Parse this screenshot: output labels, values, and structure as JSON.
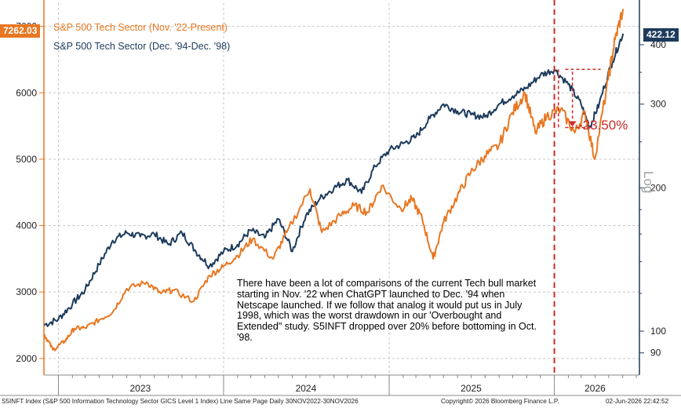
{
  "colors": {
    "orange": "#e87722",
    "navy": "#1d3b5c",
    "red": "#cc2b2b",
    "grid": "#c8c8c8"
  },
  "legend": {
    "series_1": "S&P 500 Tech Sector (Nov. '22-Present)",
    "series_2": "S&P 500 Tech Sector (Dec. '94-Dec. '98)"
  },
  "badges": {
    "left_last_value": "7262.03",
    "right_last_value": "422.12"
  },
  "annotation_text": "There have been a lot of comparisons of the current Tech bull market starting in Nov. '22 when ChatGPT launched to Dec. '94 when Netscape launched. If we follow that analog it would put us in July 1998, which was the worst drawdown in our 'Overbought and Extended\" study. S5INFT dropped over 20% before bottoming in Oct. '98.",
  "drawdown_label": "-23.50%",
  "right_axis_title": "Log",
  "footer": {
    "left": "S5INFT Index (S&P 500 Information Technology Sector GICS Level 1 Index) Line Same Page Daily 30NOV2022-30NOV2026",
    "middle": "Copyright© 2026 Bloomberg Finance L.P.",
    "right": "02-Jun-2026 22:42:52"
  },
  "chart_data": {
    "type": "line",
    "x_tick_labels": [
      "2023",
      "2024",
      "2025",
      "2026"
    ],
    "y_left": {
      "ticks": [
        2000,
        3000,
        4000,
        5000,
        6000,
        7000
      ],
      "ylim": [
        1750,
        7350
      ]
    },
    "y_right": {
      "scale": "log",
      "ticks": [
        90,
        100,
        200,
        300,
        400
      ],
      "title": "Log"
    },
    "vertical_marker_date": "2026-01",
    "drawdown": {
      "percent": -23.5,
      "label": "-23.50%"
    },
    "series": [
      {
        "name": "S&P 500 Tech Sector (Nov. '22-Present)",
        "axis": "left",
        "last_value": 7262.03,
        "points": [
          [
            "2022-11-30",
            2370
          ],
          [
            "2022-12-20",
            2130
          ],
          [
            "2023-01-15",
            2260
          ],
          [
            "2023-02-05",
            2450
          ],
          [
            "2023-03-01",
            2460
          ],
          [
            "2023-04-01",
            2580
          ],
          [
            "2023-05-01",
            2700
          ],
          [
            "2023-06-01",
            3050
          ],
          [
            "2023-07-15",
            3150
          ],
          [
            "2023-08-15",
            2980
          ],
          [
            "2023-09-10",
            3030
          ],
          [
            "2023-10-27",
            2860
          ],
          [
            "2023-12-01",
            3250
          ],
          [
            "2023-12-31",
            3380
          ],
          [
            "2024-02-01",
            3550
          ],
          [
            "2024-03-05",
            3800
          ],
          [
            "2024-04-19",
            3500
          ],
          [
            "2024-05-20",
            3900
          ],
          [
            "2024-07-10",
            4550
          ],
          [
            "2024-08-05",
            3900
          ],
          [
            "2024-09-15",
            4150
          ],
          [
            "2024-10-15",
            4300
          ],
          [
            "2024-11-15",
            4200
          ],
          [
            "2024-12-15",
            4600
          ],
          [
            "2025-01-27",
            4250
          ],
          [
            "2025-02-20",
            4400
          ],
          [
            "2025-03-15",
            4100
          ],
          [
            "2025-04-08",
            3500
          ],
          [
            "2025-05-01",
            4050
          ],
          [
            "2025-06-01",
            4450
          ],
          [
            "2025-06-30",
            4800
          ],
          [
            "2025-07-31",
            5050
          ],
          [
            "2025-08-31",
            5200
          ],
          [
            "2025-09-30",
            5700
          ],
          [
            "2025-10-28",
            6000
          ],
          [
            "2025-11-20",
            5400
          ],
          [
            "2025-12-15",
            5650
          ],
          [
            "2026-01-15",
            5750
          ],
          [
            "2026-02-15",
            5400
          ],
          [
            "2026-03-10",
            5700
          ],
          [
            "2026-03-31",
            5000
          ],
          [
            "2026-04-30",
            6200
          ],
          [
            "2026-05-15",
            6800
          ],
          [
            "2026-06-02",
            7262
          ]
        ]
      },
      {
        "name": "S&P 500 Tech Sector (Dec. '94-Dec. '98)",
        "axis": "right",
        "last_value": 422.12,
        "points": [
          [
            "2022-11-30",
            103
          ],
          [
            "2023-01-01",
            106
          ],
          [
            "2023-02-01",
            114
          ],
          [
            "2023-03-01",
            122
          ],
          [
            "2023-04-01",
            138
          ],
          [
            "2023-05-01",
            155
          ],
          [
            "2023-06-01",
            161
          ],
          [
            "2023-07-01",
            158
          ],
          [
            "2023-08-01",
            160
          ],
          [
            "2023-09-01",
            152
          ],
          [
            "2023-10-01",
            161
          ],
          [
            "2023-11-01",
            147
          ],
          [
            "2023-12-01",
            137
          ],
          [
            "2024-01-01",
            147
          ],
          [
            "2024-02-01",
            152
          ],
          [
            "2024-03-01",
            163
          ],
          [
            "2024-04-01",
            157
          ],
          [
            "2024-05-01",
            172
          ],
          [
            "2024-06-01",
            147
          ],
          [
            "2024-07-01",
            175
          ],
          [
            "2024-08-01",
            190
          ],
          [
            "2024-09-01",
            200
          ],
          [
            "2024-10-01",
            208
          ],
          [
            "2024-11-01",
            195
          ],
          [
            "2024-12-01",
            222
          ],
          [
            "2025-01-01",
            240
          ],
          [
            "2025-02-01",
            248
          ],
          [
            "2025-03-01",
            256
          ],
          [
            "2025-04-01",
            280
          ],
          [
            "2025-05-01",
            300
          ],
          [
            "2025-06-01",
            290
          ],
          [
            "2025-07-01",
            285
          ],
          [
            "2025-08-01",
            282
          ],
          [
            "2025-09-01",
            300
          ],
          [
            "2025-10-01",
            312
          ],
          [
            "2025-11-01",
            325
          ],
          [
            "2025-12-01",
            345
          ],
          [
            "2026-01-01",
            355
          ],
          [
            "2026-02-01",
            330
          ],
          [
            "2026-03-01",
            300
          ],
          [
            "2026-03-20",
            268
          ],
          [
            "2026-04-10",
            300
          ],
          [
            "2026-05-10",
            370
          ],
          [
            "2026-06-02",
            422
          ]
        ]
      }
    ]
  }
}
